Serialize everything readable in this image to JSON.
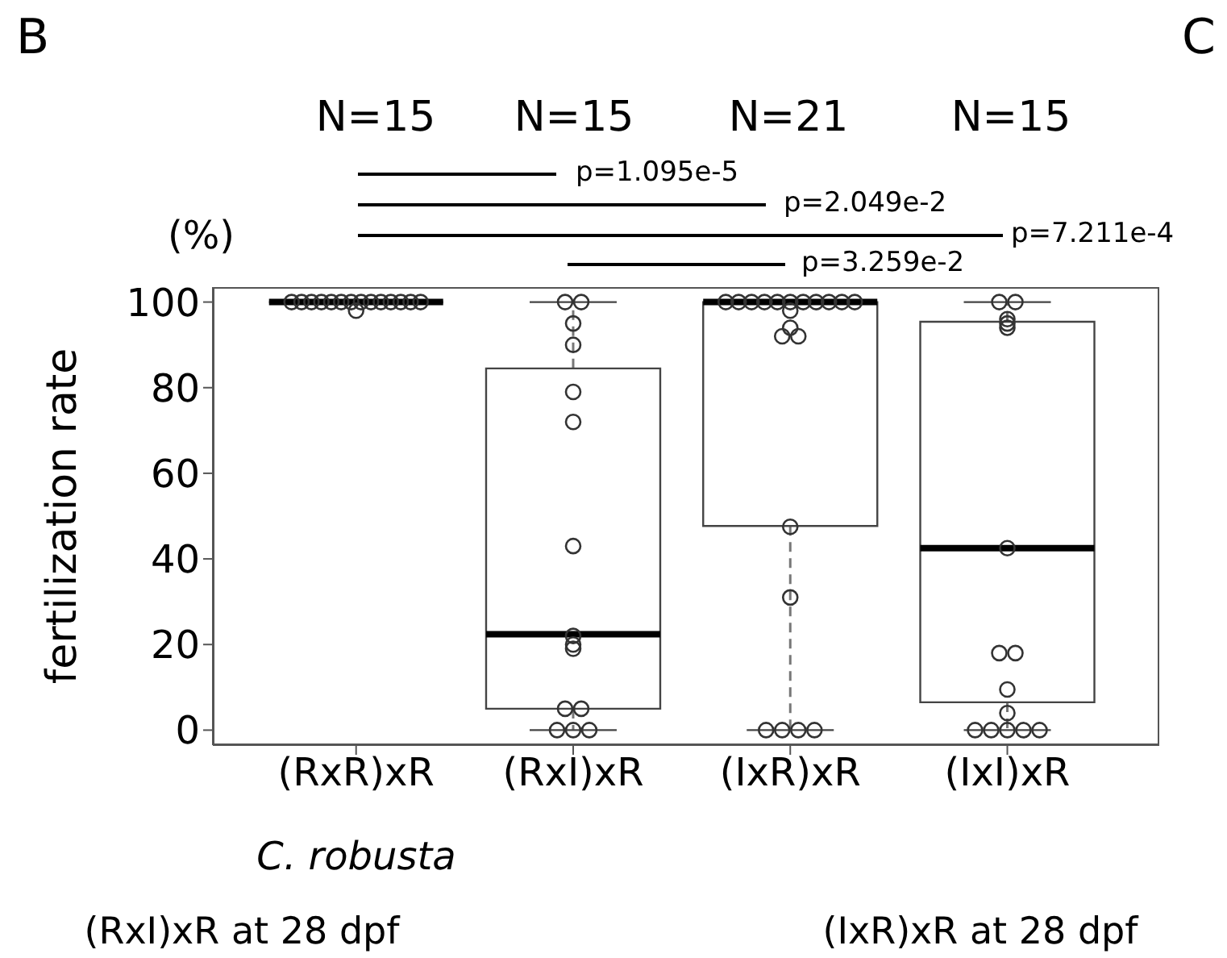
{
  "chart_data": {
    "type": "box",
    "ylabel": "fertilization rate",
    "categories": [
      "(RxR)xR",
      "(RxI)xR",
      "(IxR)xR",
      "(IxI)xR"
    ],
    "boxes": [
      {
        "low": 100,
        "q1": 100,
        "median": 100,
        "q3": 100,
        "high": 100
      },
      {
        "low": 0,
        "q1": 5,
        "median": 22.4,
        "q3": 84.5,
        "high": 100
      },
      {
        "low": 0,
        "q1": 47.7,
        "median": 100,
        "q3": 100,
        "high": 100
      },
      {
        "low": 0,
        "q1": 6.5,
        "median": 42.5,
        "q3": 95.4,
        "high": 100
      }
    ],
    "series": [
      {
        "type": "scatter",
        "color": "#333333",
        "x": [
          "(RxR)xR",
          "(RxR)xR",
          "(RxR)xR",
          "(RxR)xR",
          "(RxR)xR",
          "(RxR)xR",
          "(RxR)xR",
          "(RxR)xR",
          "(RxR)xR",
          "(RxR)xR",
          "(RxR)xR",
          "(RxR)xR",
          "(RxR)xR",
          "(RxR)xR",
          "(RxR)xR",
          "(RxI)xR",
          "(RxI)xR",
          "(RxI)xR",
          "(RxI)xR",
          "(RxI)xR",
          "(RxI)xR",
          "(RxI)xR",
          "(RxI)xR",
          "(RxI)xR",
          "(RxI)xR",
          "(RxI)xR",
          "(RxI)xR",
          "(RxI)xR",
          "(RxI)xR",
          "(RxI)xR",
          "(IxR)xR",
          "(IxR)xR",
          "(IxR)xR",
          "(IxR)xR",
          "(IxR)xR",
          "(IxR)xR",
          "(IxR)xR",
          "(IxR)xR",
          "(IxR)xR",
          "(IxR)xR",
          "(IxR)xR",
          "(IxR)xR",
          "(IxR)xR",
          "(IxR)xR",
          "(IxR)xR",
          "(IxR)xR",
          "(IxR)xR",
          "(IxR)xR",
          "(IxR)xR",
          "(IxR)xR",
          "(IxR)xR",
          "(IxI)xR",
          "(IxI)xR",
          "(IxI)xR",
          "(IxI)xR",
          "(IxI)xR",
          "(IxI)xR",
          "(IxI)xR",
          "(IxI)xR",
          "(IxI)xR",
          "(IxI)xR",
          "(IxI)xR",
          "(IxI)xR",
          "(IxI)xR",
          "(IxI)xR",
          "(IxI)xR"
        ],
        "values": [
          100,
          100,
          100,
          100,
          100,
          100,
          100,
          100,
          100,
          100,
          100,
          100,
          100,
          100,
          98,
          100,
          100,
          95,
          90,
          79,
          72,
          43,
          22,
          20,
          19,
          5,
          5,
          0,
          0,
          0,
          100,
          100,
          100,
          100,
          100,
          100,
          100,
          100,
          100,
          100,
          100,
          98,
          94,
          92,
          92,
          47.5,
          31,
          0,
          0,
          0,
          0,
          100,
          100,
          96,
          95,
          94,
          42.5,
          18,
          18,
          9.5,
          4,
          0,
          0,
          0,
          0,
          0
        ]
      }
    ],
    "color": "#444444",
    "ylim": [
      -3.5,
      103.5
    ],
    "yticks": [
      0,
      20,
      40,
      60,
      80,
      100
    ],
    "marker": "circle",
    "grid": false,
    "annotations": [
      "B",
      "C",
      "(%)",
      "N=15",
      "N=15",
      "N=21",
      "N=15",
      "p=1.095e-5",
      "p=2.049e-2",
      "p=7.211e-4",
      "p=3.259e-2",
      "C. robusta",
      "(RxI)xR at 28 dpf",
      "(IxR)xR at 28 dpf"
    ]
  }
}
